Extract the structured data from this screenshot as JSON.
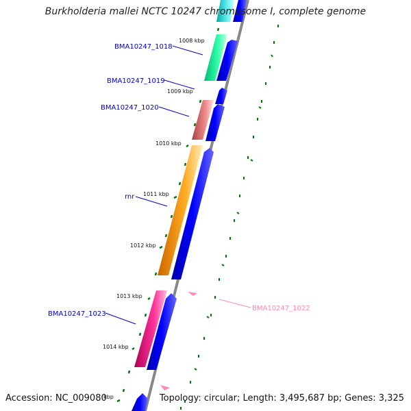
{
  "title": "Burkholderia mallei NCTC 10247 chromosome I, complete genome",
  "accession": "Accession: NC_009080",
  "topology": "Topology: circular; Length: 3,495,687 bp; Genes: 3,325",
  "kbp_labels": [
    "1008 kbp",
    "1009 kbp",
    "1010 kbp",
    "1011 kbp",
    "1012 kbp",
    "1013 kbp",
    "1014 kbp",
    "kbp"
  ],
  "genes": [
    {
      "label": "BMA10247_1018",
      "color": "#00ee99",
      "label_color": "#0000cc"
    },
    {
      "label": "BMA10247_1019",
      "color": "#0000ee",
      "label_color": "#0000cc"
    },
    {
      "label": "BMA10247_1020",
      "color": "#e07070",
      "label_color": "#0000cc"
    },
    {
      "label": "rnr",
      "color": "#ff8800",
      "label_color": "#0000cc"
    },
    {
      "label": "BMA10247_1023",
      "color": "#ee1188",
      "label_color": "#0000cc"
    },
    {
      "label": "BMA10247_1022",
      "color": "#ff88bb",
      "label_color": "#ff88bb"
    }
  ],
  "colors": {
    "cds": "#0000ee",
    "tick": "#006600",
    "backbone": "#888888"
  }
}
